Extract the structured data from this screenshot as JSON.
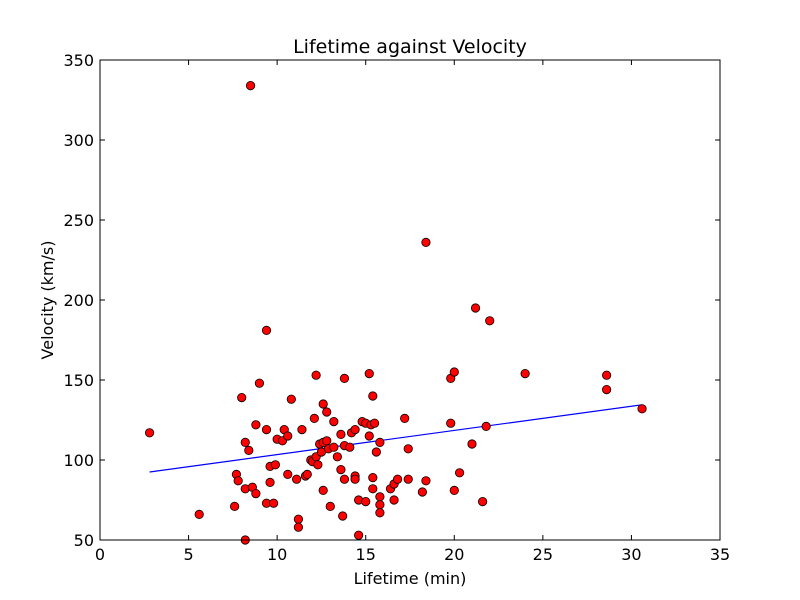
{
  "chart_data": {
    "type": "scatter",
    "title": "Lifetime against Velocity",
    "xlabel": "Lifetime (min)",
    "ylabel": "Velocity (km/s)",
    "xlim": [
      0,
      35
    ],
    "ylim": [
      50,
      350
    ],
    "xticks": [
      "0",
      "5",
      "10",
      "15",
      "20",
      "25",
      "30",
      "35"
    ],
    "yticks": [
      "50",
      "100",
      "150",
      "200",
      "250",
      "300",
      "350"
    ],
    "grid": false,
    "marker_color": "#ff0000",
    "marker_edge_color": "#000000",
    "fit_line_color": "#0000ff",
    "series": [
      {
        "points": [
          [
            2.8,
            117
          ],
          [
            5.6,
            66
          ],
          [
            7.6,
            71
          ],
          [
            7.7,
            91
          ],
          [
            7.8,
            87
          ],
          [
            8.0,
            139
          ],
          [
            8.2,
            111
          ],
          [
            8.2,
            82
          ],
          [
            8.2,
            50
          ],
          [
            8.4,
            106
          ],
          [
            8.5,
            334
          ],
          [
            8.6,
            83
          ],
          [
            8.8,
            122
          ],
          [
            8.8,
            79
          ],
          [
            9.0,
            148
          ],
          [
            9.4,
            181
          ],
          [
            9.4,
            119
          ],
          [
            9.4,
            73
          ],
          [
            9.6,
            96
          ],
          [
            9.6,
            86
          ],
          [
            9.8,
            73
          ],
          [
            9.9,
            97
          ],
          [
            10.0,
            113
          ],
          [
            10.3,
            112
          ],
          [
            10.4,
            119
          ],
          [
            10.6,
            115
          ],
          [
            10.6,
            91
          ],
          [
            10.8,
            138
          ],
          [
            11.1,
            88
          ],
          [
            11.2,
            63
          ],
          [
            11.2,
            58
          ],
          [
            11.4,
            119
          ],
          [
            11.6,
            90
          ],
          [
            11.7,
            91
          ],
          [
            11.9,
            100
          ],
          [
            12.0,
            99
          ],
          [
            12.1,
            126
          ],
          [
            12.2,
            153
          ],
          [
            12.2,
            102
          ],
          [
            12.3,
            97
          ],
          [
            12.4,
            110
          ],
          [
            12.5,
            105
          ],
          [
            12.6,
            111
          ],
          [
            12.6,
            135
          ],
          [
            12.6,
            81
          ],
          [
            12.8,
            130
          ],
          [
            12.8,
            112
          ],
          [
            12.9,
            107
          ],
          [
            13.0,
            71
          ],
          [
            13.2,
            124
          ],
          [
            13.2,
            108
          ],
          [
            13.4,
            102
          ],
          [
            13.6,
            116
          ],
          [
            13.6,
            94
          ],
          [
            13.7,
            65
          ],
          [
            13.8,
            151
          ],
          [
            13.8,
            109
          ],
          [
            13.8,
            88
          ],
          [
            14.1,
            108
          ],
          [
            14.2,
            117
          ],
          [
            14.4,
            119
          ],
          [
            14.4,
            90
          ],
          [
            14.4,
            88
          ],
          [
            14.6,
            75
          ],
          [
            14.6,
            53
          ],
          [
            14.8,
            124
          ],
          [
            15.0,
            123
          ],
          [
            15.0,
            74
          ],
          [
            15.2,
            154
          ],
          [
            15.2,
            115
          ],
          [
            15.3,
            122
          ],
          [
            15.4,
            140
          ],
          [
            15.4,
            89
          ],
          [
            15.4,
            82
          ],
          [
            15.5,
            123
          ],
          [
            15.6,
            105
          ],
          [
            15.8,
            111
          ],
          [
            15.8,
            77
          ],
          [
            15.8,
            72
          ],
          [
            15.8,
            67
          ],
          [
            16.4,
            82
          ],
          [
            16.6,
            85
          ],
          [
            16.6,
            75
          ],
          [
            16.8,
            88
          ],
          [
            17.2,
            126
          ],
          [
            17.4,
            107
          ],
          [
            17.4,
            88
          ],
          [
            18.2,
            80
          ],
          [
            18.4,
            236
          ],
          [
            18.4,
            87
          ],
          [
            19.8,
            151
          ],
          [
            19.8,
            123
          ],
          [
            20.0,
            155
          ],
          [
            20.0,
            81
          ],
          [
            20.3,
            92
          ],
          [
            21.0,
            110
          ],
          [
            21.2,
            195
          ],
          [
            21.6,
            74
          ],
          [
            21.8,
            121
          ],
          [
            22.0,
            187
          ],
          [
            24.0,
            154
          ],
          [
            28.6,
            153
          ],
          [
            28.6,
            144
          ],
          [
            30.6,
            132
          ]
        ]
      }
    ],
    "fit_line": {
      "x": [
        2.8,
        30.6
      ],
      "y": [
        92.5,
        134.5
      ]
    }
  }
}
